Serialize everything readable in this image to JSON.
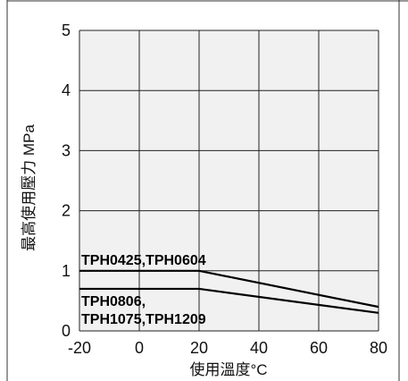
{
  "chart_data": {
    "type": "line",
    "title": "",
    "xlabel": "使用溫度°C",
    "ylabel": "最高使用壓力 MPa",
    "xlim": [
      -20,
      80
    ],
    "ylim": [
      0,
      5
    ],
    "xticks": [
      -20,
      0,
      20,
      40,
      60,
      80
    ],
    "yticks": [
      0,
      1,
      2,
      3,
      4,
      5
    ],
    "grid": true,
    "series": [
      {
        "x": [
          -20,
          20,
          80
        ],
        "y": [
          1.0,
          1.0,
          0.4
        ],
        "label": "TPH0425,TPH0604"
      },
      {
        "x": [
          -20,
          20,
          80
        ],
        "y": [
          0.7,
          0.7,
          0.3
        ],
        "label_lines": [
          "TPH0806,",
          "TPH1075,TPH1209"
        ]
      }
    ],
    "colors": {
      "background": "#f1f1f1",
      "grid": "#222222",
      "line": "#000000"
    }
  }
}
